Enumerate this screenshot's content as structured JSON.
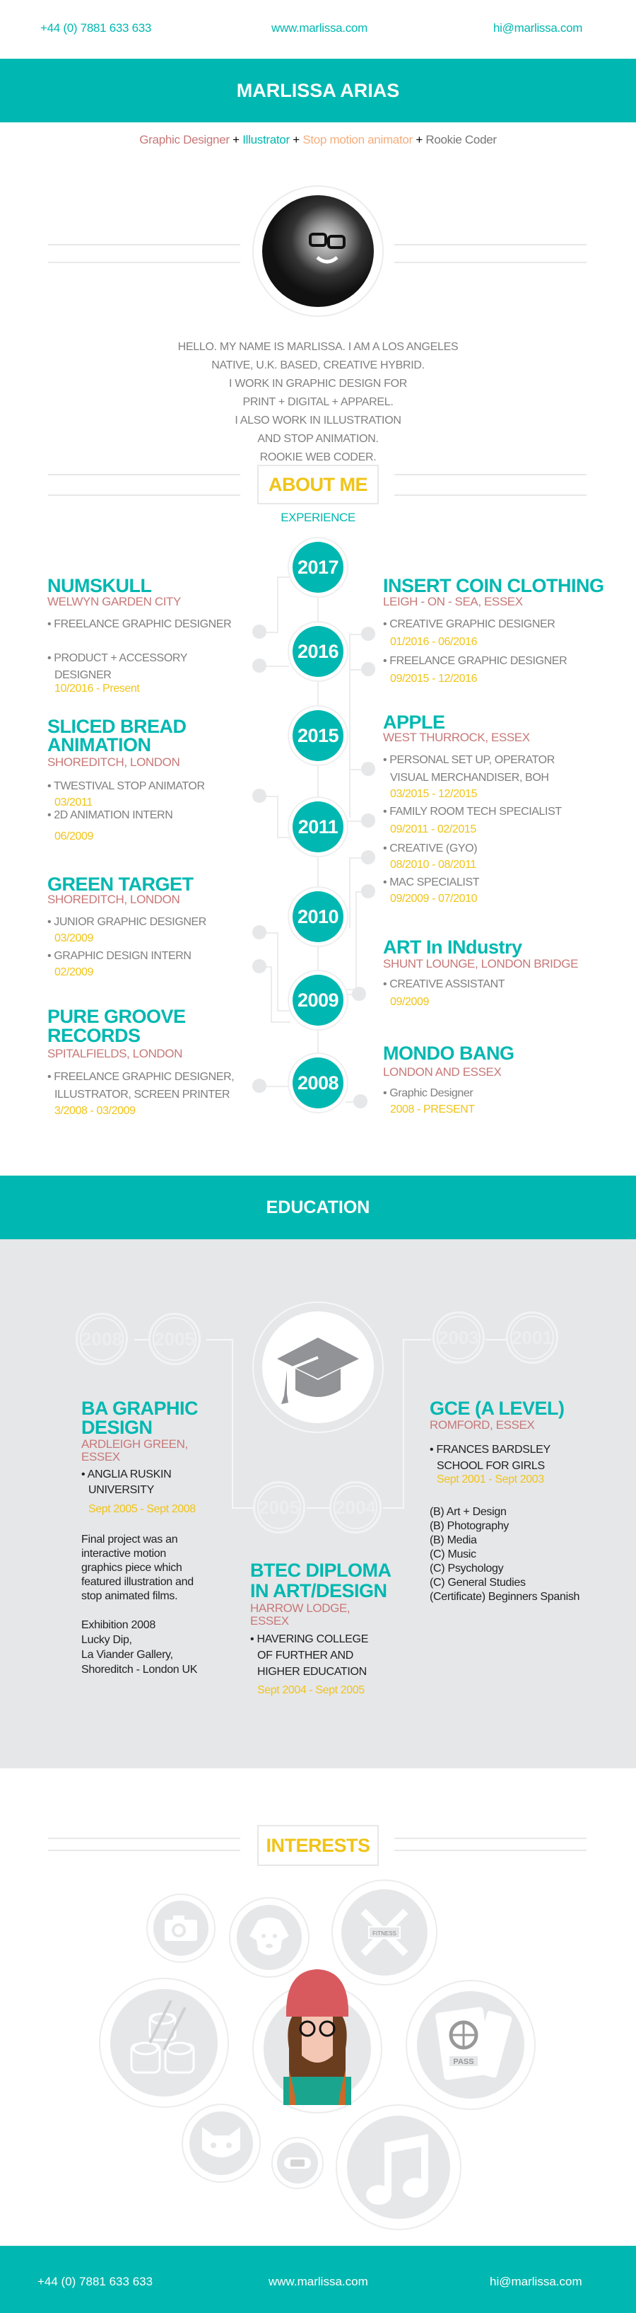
{
  "contact": {
    "phone": "+44 (0) 7881 633 633",
    "website": "www.marlissa.com",
    "email": "hi@marlissa.com"
  },
  "header": {
    "name": "MARLISSA ARIAS"
  },
  "tagline": {
    "role1": "Graphic Designer",
    "role2": "Illustrator",
    "role3": "Stop motion animator",
    "role4": "Rookie Coder",
    "sep": " + "
  },
  "colors": {
    "teal": "#00b8b1",
    "pink": "#c87878",
    "yellow": "#f0c419",
    "gray": "#7f7f7f",
    "light_gray": "#e6e7e9"
  },
  "bio": {
    "lines": [
      "HELLO. MY NAME IS MARLISSA. I AM A LOS ANGELES",
      "NATIVE, U.K. BASED, CREATIVE HYBRID.",
      "I WORK IN GRAPHIC DESIGN FOR",
      "PRINT + DIGITAL + APPAREL.",
      "I ALSO WORK IN ILLUSTRATION",
      "AND STOP ANIMATION.",
      "ROOKIE WEB CODER."
    ]
  },
  "about": {
    "title": "ABOUT ME",
    "subtitle": "EXPERIENCE"
  },
  "years": [
    "2017",
    "2016",
    "2015",
    "2011",
    "2010",
    "2009",
    "2008"
  ],
  "experience": {
    "left": [
      {
        "company": [
          "NUMSKULL"
        ],
        "location": "WELWYN GARDEN CITY",
        "roles": [
          {
            "title": [
              "FREELANCE GRAPHIC DESIGNER"
            ],
            "date": ""
          },
          {
            "title": [
              "PRODUCT + ACCESSORY",
              "DESIGNER"
            ],
            "date": "10/2016 - Present"
          }
        ]
      },
      {
        "company": [
          "SLICED BREAD",
          "ANIMATION"
        ],
        "location": "SHOREDITCH, LONDON",
        "roles": [
          {
            "title": [
              "TWESTIVAL STOP ANIMATOR"
            ],
            "date": "03/2011"
          },
          {
            "title": [
              "2D ANIMATION INTERN"
            ],
            "date": "06/2009"
          }
        ]
      },
      {
        "company": [
          "GREEN TARGET"
        ],
        "location": "SHOREDITCH, LONDON",
        "roles": [
          {
            "title": [
              "JUNIOR GRAPHIC DESIGNER"
            ],
            "date": "03/2009"
          },
          {
            "title": [
              "GRAPHIC DESIGN INTERN"
            ],
            "date": "02/2009"
          }
        ]
      },
      {
        "company": [
          "PURE GROOVE",
          "RECORDS"
        ],
        "location": "SPITALFIELDS, LONDON",
        "roles": [
          {
            "title": [
              "FREELANCE GRAPHIC DESIGNER,",
              "ILLUSTRATOR, SCREEN PRINTER"
            ],
            "date": "3/2008 - 03/2009"
          }
        ]
      }
    ],
    "right": [
      {
        "company": [
          "INSERT COIN CLOTHING"
        ],
        "location": "LEIGH - ON - SEA, ESSEX",
        "roles": [
          {
            "title": [
              "CREATIVE GRAPHIC DESIGNER"
            ],
            "date": "01/2016 - 06/2016"
          },
          {
            "title": [
              "FREELANCE GRAPHIC DESIGNER"
            ],
            "date": "09/2015 - 12/2016"
          }
        ]
      },
      {
        "company": [
          "APPLE"
        ],
        "location": "WEST THURROCK, ESSEX",
        "roles": [
          {
            "title": [
              "PERSONAL SET UP, OPERATOR",
              "VISUAL MERCHANDISER, BOH"
            ],
            "date": "03/2015 - 12/2015"
          },
          {
            "title": [
              "FAMILY ROOM TECH SPECIALIST"
            ],
            "date": "09/2011 - 02/2015"
          },
          {
            "title": [
              "CREATIVE (GYO)"
            ],
            "date": "08/2010 - 08/2011"
          },
          {
            "title": [
              "MAC SPECIALIST"
            ],
            "date": "09/2009 - 07/2010"
          }
        ]
      },
      {
        "company": [
          "ART In INdustry"
        ],
        "location": "SHUNT LOUNGE, LONDON BRIDGE",
        "roles": [
          {
            "title": [
              "CREATIVE ASSISTANT"
            ],
            "date": "09/2009"
          }
        ]
      },
      {
        "company": [
          "MONDO BANG"
        ],
        "location": "LONDON AND ESSEX",
        "roles": [
          {
            "title": [
              "Graphic Designer"
            ],
            "date": "2008 - PRESENT"
          }
        ]
      }
    ]
  },
  "education": {
    "title": "EDUCATION",
    "icon": "graduation-cap-icon",
    "ba": {
      "years": [
        "2008",
        "2005"
      ],
      "title": [
        "BA GRAPHIC",
        "DESIGN"
      ],
      "location": [
        "ARDLEIGH GREEN,",
        "ESSEX"
      ],
      "school": [
        "ANGLIA RUSKIN",
        "UNIVERSITY"
      ],
      "date": "Sept 2005 - Sept 2008",
      "notes": [
        "Final project was an",
        "interactive motion",
        "graphics piece which",
        "featured illustration and",
        "stop animated films."
      ],
      "exhibition": [
        "Exhibition 2008",
        "Lucky Dip,",
        "La Viander Gallery,",
        "Shoreditch - London UK"
      ]
    },
    "btec": {
      "years": [
        "2005",
        "2004"
      ],
      "title": [
        "BTEC DIPLOMA",
        "IN ART/DESIGN"
      ],
      "location": [
        "HARROW LODGE,",
        "ESSEX"
      ],
      "school": [
        "HAVERING COLLEGE",
        "OF FURTHER AND",
        "HIGHER EDUCATION"
      ],
      "date": "Sept 2004 - Sept 2005"
    },
    "gce": {
      "years": [
        "2003",
        "2001"
      ],
      "title": [
        "GCE (A LEVEL)"
      ],
      "location": [
        "ROMFORD, ESSEX"
      ],
      "school": [
        "FRANCES BARDSLEY",
        "SCHOOL FOR GIRLS"
      ],
      "date": "Sept 2001 - Sept 2003",
      "grades": [
        "(B) Art + Design",
        "(B) Photography",
        "(B) Media",
        "(C) Music",
        "(C) Psychology",
        "(C) General Studies",
        "(Certificate) Beginners Spanish"
      ]
    }
  },
  "interests": {
    "title": "INTERESTS",
    "fitness_label": "FITNESS",
    "pass_label": "PASS",
    "icons": [
      "camera-icon",
      "dog-icon",
      "fitness-icon",
      "sushi-icon",
      "avatar-illustration",
      "passport-icon",
      "cat-icon",
      "game-console-icon",
      "music-note-icon"
    ]
  }
}
